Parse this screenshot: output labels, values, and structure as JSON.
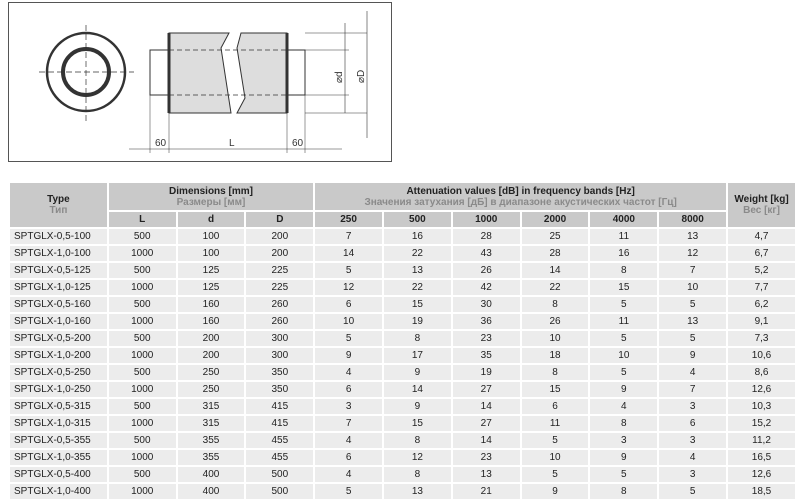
{
  "diagram": {
    "labels": {
      "left_len": "60",
      "length": "L",
      "right_len": "60",
      "inner_diameter": "⌀d",
      "outer_diameter": "⌀D"
    }
  },
  "table": {
    "headers": {
      "type_en": "Type",
      "type_ru": "Тип",
      "dims_en": "Dimensions [mm]",
      "dims_ru": "Размеры [мм]",
      "att_en": "Attenuation values [dB] in frequency bands [Hz]",
      "att_ru": "Значения затухания [дБ] в диапазоне акустических частот [Гц]",
      "weight_en": "Weight [kg]",
      "weight_ru": "Вес [кг]",
      "sub": [
        "L",
        "d",
        "D",
        "250",
        "500",
        "1000",
        "2000",
        "4000",
        "8000"
      ]
    },
    "rows": [
      [
        "SPTGLX-0,5-100",
        "500",
        "100",
        "200",
        "7",
        "16",
        "28",
        "25",
        "11",
        "13",
        "4,7"
      ],
      [
        "SPTGLX-1,0-100",
        "1000",
        "100",
        "200",
        "14",
        "22",
        "43",
        "28",
        "16",
        "12",
        "6,7"
      ],
      [
        "SPTGLX-0,5-125",
        "500",
        "125",
        "225",
        "5",
        "13",
        "26",
        "14",
        "8",
        "7",
        "5,2"
      ],
      [
        "SPTGLX-1,0-125",
        "1000",
        "125",
        "225",
        "12",
        "22",
        "42",
        "22",
        "15",
        "10",
        "7,7"
      ],
      [
        "SPTGLX-0,5-160",
        "500",
        "160",
        "260",
        "6",
        "15",
        "30",
        "8",
        "5",
        "5",
        "6,2"
      ],
      [
        "SPTGLX-1,0-160",
        "1000",
        "160",
        "260",
        "10",
        "19",
        "36",
        "26",
        "11",
        "13",
        "9,1"
      ],
      [
        "SPTGLX-0,5-200",
        "500",
        "200",
        "300",
        "5",
        "8",
        "23",
        "10",
        "5",
        "5",
        "7,3"
      ],
      [
        "SPTGLX-1,0-200",
        "1000",
        "200",
        "300",
        "9",
        "17",
        "35",
        "18",
        "10",
        "9",
        "10,6"
      ],
      [
        "SPTGLX-0,5-250",
        "500",
        "250",
        "350",
        "4",
        "9",
        "19",
        "8",
        "5",
        "4",
        "8,6"
      ],
      [
        "SPTGLX-1,0-250",
        "1000",
        "250",
        "350",
        "6",
        "14",
        "27",
        "15",
        "9",
        "7",
        "12,6"
      ],
      [
        "SPTGLX-0,5-315",
        "500",
        "315",
        "415",
        "3",
        "9",
        "14",
        "6",
        "4",
        "3",
        "10,3"
      ],
      [
        "SPTGLX-1,0-315",
        "1000",
        "315",
        "415",
        "7",
        "15",
        "27",
        "11",
        "8",
        "6",
        "15,2"
      ],
      [
        "SPTGLX-0,5-355",
        "500",
        "355",
        "455",
        "4",
        "8",
        "14",
        "5",
        "3",
        "3",
        "11,2"
      ],
      [
        "SPTGLX-1,0-355",
        "1000",
        "355",
        "455",
        "6",
        "12",
        "23",
        "10",
        "9",
        "4",
        "16,5"
      ],
      [
        "SPTGLX-0,5-400",
        "500",
        "400",
        "500",
        "4",
        "8",
        "13",
        "5",
        "5",
        "3",
        "12,6"
      ],
      [
        "SPTGLX-1,0-400",
        "1000",
        "400",
        "500",
        "5",
        "13",
        "21",
        "9",
        "8",
        "5",
        "18,5"
      ]
    ]
  }
}
